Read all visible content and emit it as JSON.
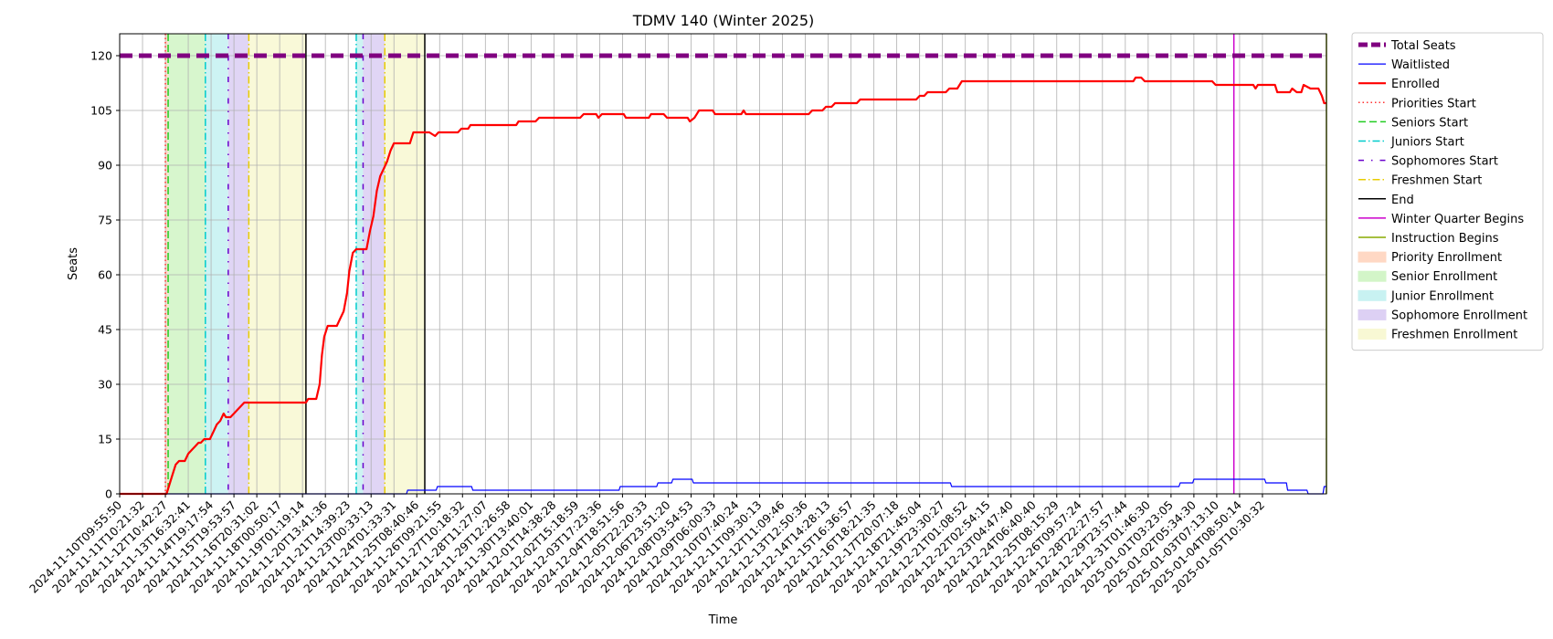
{
  "chart_data": {
    "type": "line",
    "title": "TDMV 140 (Winter 2025)",
    "xlabel": "Time",
    "ylabel": "Seats",
    "ylim": [
      0,
      126
    ],
    "yticks": [
      0,
      15,
      30,
      45,
      60,
      75,
      90,
      105,
      120
    ],
    "grid": true,
    "legend_position": "outside-right",
    "x_tick_labels": [
      "2024-11-10T09:55:50",
      "2024-11-11T10:21:32",
      "2024-11-12T10:42:27",
      "2024-11-13T16:32:41",
      "2024-11-14T19:17:54",
      "2024-11-15T19:53:57",
      "2024-11-16T20:31:02",
      "2024-11-18T00:50:17",
      "2024-11-19T01:19:14",
      "2024-11-20T13:41:36",
      "2024-11-21T14:39:23",
      "2024-11-23T00:33:13",
      "2024-11-24T01:33:31",
      "2024-11-25T08:40:46",
      "2024-11-26T09:21:55",
      "2024-11-27T10:18:32",
      "2024-11-28T11:27:07",
      "2024-11-29T12:26:58",
      "2024-11-30T13:40:01",
      "2024-12-01T14:38:28",
      "2024-12-02T15:18:59",
      "2024-12-03T17:23:36",
      "2024-12-04T18:51:56",
      "2024-12-05T22:20:33",
      "2024-12-06T23:51:20",
      "2024-12-08T03:54:53",
      "2024-12-09T06:00:33",
      "2024-12-10T07:40:24",
      "2024-12-11T09:30:13",
      "2024-12-12T11:09:46",
      "2024-12-13T12:50:36",
      "2024-12-14T14:28:13",
      "2024-12-15T16:36:57",
      "2024-12-16T18:21:35",
      "2024-12-17T20:07:18",
      "2024-12-18T21:45:04",
      "2024-12-19T23:30:27",
      "2024-12-21T01:08:52",
      "2024-12-22T02:54:15",
      "2024-12-23T04:47:40",
      "2024-12-24T06:40:40",
      "2024-12-25T08:15:29",
      "2024-12-26T09:57:24",
      "2024-12-28T22:27:57",
      "2024-12-29T23:57:44",
      "2024-12-31T01:46:30",
      "2025-01-01T03:23:05",
      "2025-01-02T05:34:30",
      "2025-01-03T07:13:10",
      "2025-01-04T08:50:14",
      "2025-01-05T10:30:32"
    ],
    "x_range_index": [
      0,
      52.8
    ],
    "series": [
      {
        "name": "Total Seats",
        "color": "#800080",
        "style": "dashed",
        "width": "thick",
        "points": [
          [
            0,
            120
          ],
          [
            52.8,
            120
          ]
        ]
      },
      {
        "name": "Enrolled",
        "color": "#ff0000",
        "style": "solid",
        "width": "medium",
        "points": [
          [
            0,
            0
          ],
          [
            2.05,
            0
          ],
          [
            2.15,
            2
          ],
          [
            2.3,
            5
          ],
          [
            2.45,
            8
          ],
          [
            2.6,
            9
          ],
          [
            2.85,
            9
          ],
          [
            3.0,
            11
          ],
          [
            3.15,
            12
          ],
          [
            3.3,
            13
          ],
          [
            3.45,
            14
          ],
          [
            3.55,
            14
          ],
          [
            3.7,
            15
          ],
          [
            3.95,
            15
          ],
          [
            4.1,
            17
          ],
          [
            4.25,
            19
          ],
          [
            4.4,
            20
          ],
          [
            4.55,
            22
          ],
          [
            4.65,
            21
          ],
          [
            4.85,
            21
          ],
          [
            5.0,
            22
          ],
          [
            5.15,
            23
          ],
          [
            5.3,
            24
          ],
          [
            5.45,
            25
          ],
          [
            5.8,
            25
          ],
          [
            8.15,
            25
          ],
          [
            8.25,
            26
          ],
          [
            8.6,
            26
          ],
          [
            8.75,
            30
          ],
          [
            8.85,
            38
          ],
          [
            8.95,
            43
          ],
          [
            9.1,
            46
          ],
          [
            9.5,
            46
          ],
          [
            9.65,
            48
          ],
          [
            9.8,
            50
          ],
          [
            9.95,
            55
          ],
          [
            10.05,
            61
          ],
          [
            10.2,
            66
          ],
          [
            10.35,
            67
          ],
          [
            10.8,
            67
          ],
          [
            10.95,
            72
          ],
          [
            11.1,
            76
          ],
          [
            11.25,
            83
          ],
          [
            11.4,
            87
          ],
          [
            11.55,
            89
          ],
          [
            11.7,
            91
          ],
          [
            11.85,
            94
          ],
          [
            12.0,
            96
          ],
          [
            12.7,
            96
          ],
          [
            12.85,
            99
          ],
          [
            13.55,
            99
          ],
          [
            13.8,
            98
          ],
          [
            13.95,
            99
          ],
          [
            14.8,
            99
          ],
          [
            14.95,
            100
          ],
          [
            15.25,
            100
          ],
          [
            15.35,
            101
          ],
          [
            17.35,
            101
          ],
          [
            17.45,
            102
          ],
          [
            18.2,
            102
          ],
          [
            18.35,
            103
          ],
          [
            20.15,
            103
          ],
          [
            20.3,
            104
          ],
          [
            20.85,
            104
          ],
          [
            20.95,
            103
          ],
          [
            21.1,
            104
          ],
          [
            22.05,
            104
          ],
          [
            22.15,
            103
          ],
          [
            23.15,
            103
          ],
          [
            23.25,
            104
          ],
          [
            23.8,
            104
          ],
          [
            23.95,
            103
          ],
          [
            24.85,
            103
          ],
          [
            24.95,
            102
          ],
          [
            25.15,
            103
          ],
          [
            25.35,
            105
          ],
          [
            25.95,
            105
          ],
          [
            26.05,
            104
          ],
          [
            27.2,
            104
          ],
          [
            27.3,
            105
          ],
          [
            27.4,
            104
          ],
          [
            30.15,
            104
          ],
          [
            30.3,
            105
          ],
          [
            30.75,
            105
          ],
          [
            30.9,
            106
          ],
          [
            31.15,
            106
          ],
          [
            31.3,
            107
          ],
          [
            32.25,
            107
          ],
          [
            32.4,
            108
          ],
          [
            34.85,
            108
          ],
          [
            35.0,
            109
          ],
          [
            35.2,
            109
          ],
          [
            35.35,
            110
          ],
          [
            36.15,
            110
          ],
          [
            36.3,
            111
          ],
          [
            36.65,
            111
          ],
          [
            36.85,
            113
          ],
          [
            44.35,
            113
          ],
          [
            44.45,
            114
          ],
          [
            44.7,
            114
          ],
          [
            44.85,
            113
          ],
          [
            47.8,
            113
          ],
          [
            47.95,
            112
          ],
          [
            49.6,
            112
          ],
          [
            49.7,
            111
          ],
          [
            49.8,
            112
          ],
          [
            50.55,
            112
          ],
          [
            50.65,
            110
          ],
          [
            51.2,
            110
          ],
          [
            51.3,
            111
          ],
          [
            51.5,
            110
          ],
          [
            51.7,
            110
          ],
          [
            51.8,
            112
          ],
          [
            52.1,
            111
          ],
          [
            52.45,
            111
          ],
          [
            52.6,
            109
          ],
          [
            52.7,
            107
          ],
          [
            52.8,
            107
          ]
        ]
      },
      {
        "name": "Waitlisted",
        "color": "#0000ff",
        "style": "solid",
        "width": "thin",
        "points": [
          [
            0,
            0
          ],
          [
            12.55,
            0
          ],
          [
            12.6,
            1
          ],
          [
            13.85,
            1
          ],
          [
            13.9,
            2
          ],
          [
            15.4,
            2
          ],
          [
            15.45,
            1
          ],
          [
            21.85,
            1
          ],
          [
            21.9,
            2
          ],
          [
            23.5,
            2
          ],
          [
            23.55,
            3
          ],
          [
            24.15,
            3
          ],
          [
            24.2,
            4
          ],
          [
            25.05,
            4
          ],
          [
            25.1,
            3
          ],
          [
            36.35,
            3
          ],
          [
            36.4,
            2
          ],
          [
            46.35,
            2
          ],
          [
            46.4,
            3
          ],
          [
            46.95,
            3
          ],
          [
            47.0,
            4
          ],
          [
            50.1,
            4
          ],
          [
            50.15,
            3
          ],
          [
            51.05,
            3
          ],
          [
            51.1,
            1
          ],
          [
            51.95,
            1
          ],
          [
            52.0,
            0
          ],
          [
            52.65,
            0
          ],
          [
            52.7,
            2
          ],
          [
            52.8,
            2
          ]
        ]
      }
    ],
    "phase_bands": [
      {
        "name": "Priority Enrollment",
        "color": "#ffd8c4",
        "ranges": [
          [
            2.0,
            2.12
          ]
        ]
      },
      {
        "name": "Senior Enrollment",
        "color": "#d3f5c8",
        "ranges": [
          [
            2.12,
            3.75
          ]
        ]
      },
      {
        "name": "Junior Enrollment",
        "color": "#c8f2f2",
        "ranges": [
          [
            3.75,
            4.75
          ],
          [
            10.35,
            10.65
          ]
        ]
      },
      {
        "name": "Sophomore Enrollment",
        "color": "#ddd0f4",
        "ranges": [
          [
            4.75,
            5.65
          ],
          [
            10.65,
            11.6
          ]
        ]
      },
      {
        "name": "Freshmen Enrollment",
        "color": "#f8f8d4",
        "ranges": [
          [
            5.65,
            8.15
          ],
          [
            11.6,
            13.35
          ]
        ]
      }
    ],
    "event_lines": [
      {
        "name": "Priorities Start",
        "color": "#ff3333",
        "style": "dotted",
        "x": [
          2.0
        ]
      },
      {
        "name": "Seniors Start",
        "color": "#22cc22",
        "style": "dashed",
        "x": [
          2.12
        ]
      },
      {
        "name": "Juniors Start",
        "color": "#00cccc",
        "style": "dashdot",
        "x": [
          3.75,
          10.35
        ]
      },
      {
        "name": "Sophomores Start",
        "color": "#6a00cc",
        "style": "loosedash",
        "x": [
          4.75,
          10.65
        ]
      },
      {
        "name": "Freshmen Start",
        "color": "#e8cc00",
        "style": "dashdot",
        "x": [
          5.65,
          11.6
        ]
      },
      {
        "name": "End",
        "color": "#000000",
        "style": "solid",
        "x": [
          8.15,
          13.35
        ]
      },
      {
        "name": "Winter Quarter Begins",
        "color": "#cc00cc",
        "style": "solid",
        "x": [
          48.75
        ]
      },
      {
        "name": "Instruction Begins",
        "color": "#88aa00",
        "style": "solid",
        "x": [
          52.8
        ]
      }
    ],
    "legend_entries": [
      {
        "label": "Total Seats",
        "kind": "line",
        "color": "#800080",
        "style": "dashed",
        "width": 5
      },
      {
        "label": "Waitlisted",
        "kind": "line",
        "color": "#0000ff",
        "style": "solid",
        "width": 1.2
      },
      {
        "label": "Enrolled",
        "kind": "line",
        "color": "#ff0000",
        "style": "solid",
        "width": 2.2
      },
      {
        "label": "Priorities Start",
        "kind": "line",
        "color": "#ff3333",
        "style": "dotted",
        "width": 1.5
      },
      {
        "label": "Seniors Start",
        "kind": "line",
        "color": "#22cc22",
        "style": "dashed",
        "width": 1.5
      },
      {
        "label": "Juniors Start",
        "kind": "line",
        "color": "#00cccc",
        "style": "dashdot",
        "width": 1.5
      },
      {
        "label": "Sophomores Start",
        "kind": "line",
        "color": "#6a00cc",
        "style": "loosedash",
        "width": 1.5
      },
      {
        "label": "Freshmen Start",
        "kind": "line",
        "color": "#e8cc00",
        "style": "dashdot",
        "width": 1.5
      },
      {
        "label": "End",
        "kind": "line",
        "color": "#000000",
        "style": "solid",
        "width": 1.5
      },
      {
        "label": "Winter Quarter Begins",
        "kind": "line",
        "color": "#cc00cc",
        "style": "solid",
        "width": 1.5
      },
      {
        "label": "Instruction Begins",
        "kind": "line",
        "color": "#88aa00",
        "style": "solid",
        "width": 1.5
      },
      {
        "label": "Priority Enrollment",
        "kind": "patch",
        "color": "#ffd8c4"
      },
      {
        "label": "Senior Enrollment",
        "kind": "patch",
        "color": "#d3f5c8"
      },
      {
        "label": "Junior Enrollment",
        "kind": "patch",
        "color": "#c8f2f2"
      },
      {
        "label": "Sophomore Enrollment",
        "kind": "patch",
        "color": "#ddd0f4"
      },
      {
        "label": "Freshmen Enrollment",
        "kind": "patch",
        "color": "#f8f8d4"
      }
    ]
  }
}
